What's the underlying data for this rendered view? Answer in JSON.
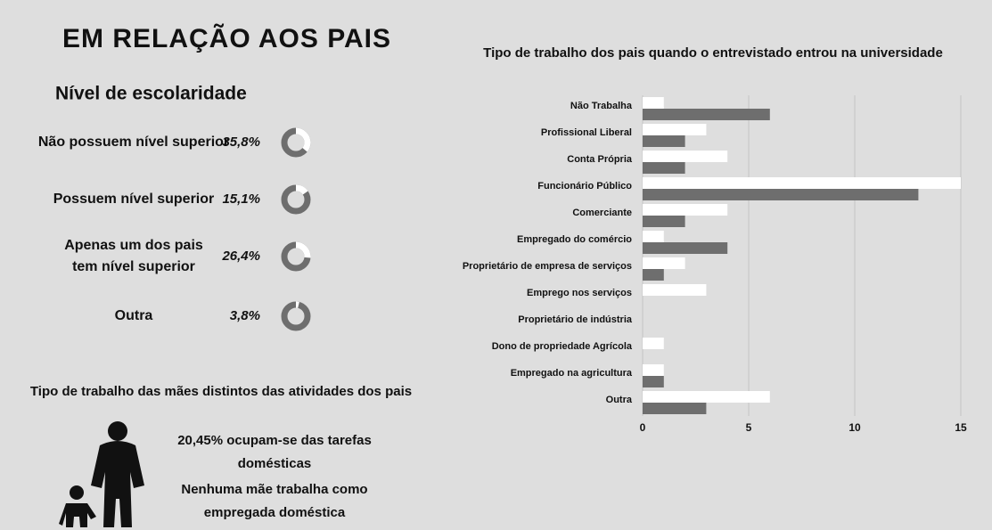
{
  "header": {
    "title": "EM RELAÇÃO AOS PAIS"
  },
  "escolaridade": {
    "title": "Nível de escolaridade",
    "items": [
      {
        "label": [
          "Não possuem nível superior"
        ],
        "value": 35.8,
        "value_label": "35,8%"
      },
      {
        "label": [
          "Possuem nível superior"
        ],
        "value": 15.1,
        "value_label": "15,1%"
      },
      {
        "label": [
          "Apenas um dos pais",
          "tem nível superior"
        ],
        "value": 26.4,
        "value_label": "26,4%"
      },
      {
        "label": [
          "Outra"
        ],
        "value": 3.8,
        "value_label": "3,8%"
      }
    ]
  },
  "maes": {
    "title": "Tipo de trabalho das mães distintos das atividades dos pais",
    "notes": [
      [
        "20,45% ocupam-se das tarefas",
        "domésticas"
      ],
      [
        "Nenhuma mãe trabalha como",
        "empregada doméstica"
      ]
    ]
  },
  "chart_data": {
    "type": "hbar",
    "title": "Tipo de trabalho dos pais quando o entrevistado entrou na universidade",
    "categories": [
      "Não Trabalha",
      "Profissional Liberal",
      "Conta Própria",
      "Funcionário Público",
      "Comerciante",
      "Empregado do comércio",
      "Proprietário de empresa de serviços",
      "Emprego nos serviços",
      "Proprietário de indústria",
      "Dono de propriedade Agrícola",
      "Empregado na agricultura",
      "Outra"
    ],
    "series": [
      {
        "color": "#ffffff",
        "values": [
          1,
          3,
          4,
          15,
          4,
          1,
          2,
          3,
          0,
          1,
          1,
          6
        ]
      },
      {
        "color": "#6e6e6e",
        "values": [
          6,
          2,
          2,
          13,
          2,
          4,
          1,
          0,
          0,
          0,
          1,
          3
        ]
      }
    ],
    "xlim": [
      0,
      15
    ],
    "xticks": [
      0,
      5,
      10,
      15
    ],
    "grid": true
  }
}
